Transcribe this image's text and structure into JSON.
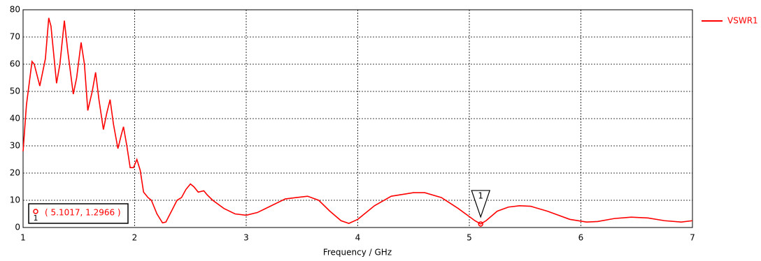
{
  "chart_data": {
    "type": "line",
    "xlabel": "Frequency / GHz",
    "x": [
      1,
      1.03,
      1.08,
      1.1,
      1.15,
      1.2,
      1.23,
      1.25,
      1.3,
      1.33,
      1.37,
      1.4,
      1.45,
      1.48,
      1.52,
      1.55,
      1.58,
      1.62,
      1.65,
      1.68,
      1.72,
      1.75,
      1.78,
      1.81,
      1.85,
      1.88,
      1.9,
      1.93,
      1.96,
      1.99,
      2.02,
      2.05,
      2.08,
      2.12,
      2.15,
      2.2,
      2.25,
      2.28,
      2.33,
      2.38,
      2.42,
      2.46,
      2.5,
      2.53,
      2.57,
      2.62,
      2.65,
      2.7,
      2.8,
      2.9,
      3.0,
      3.1,
      3.2,
      3.35,
      3.45,
      3.55,
      3.65,
      3.75,
      3.85,
      3.92,
      4.0,
      4.15,
      4.3,
      4.5,
      4.6,
      4.75,
      4.9,
      5.05,
      5.1017,
      5.15,
      5.25,
      5.35,
      5.45,
      5.55,
      5.7,
      5.9,
      6.05,
      6.15,
      6.3,
      6.45,
      6.6,
      6.75,
      6.9,
      7.0
    ],
    "series": [
      {
        "name": "VSWR1",
        "color": "#ff0000",
        "values": [
          28,
          45,
          61,
          60,
          52,
          62,
          77,
          74,
          53,
          60,
          76,
          65,
          49,
          55,
          68,
          60,
          43,
          50,
          57,
          47,
          36,
          42,
          47,
          38,
          29,
          34,
          37,
          30,
          22,
          22,
          25,
          21,
          13,
          11,
          10,
          5,
          1.7,
          2,
          6,
          10,
          11,
          14,
          16,
          15,
          13,
          13.5,
          12,
          10,
          7,
          5,
          4.5,
          5.5,
          7.5,
          10.5,
          11,
          11.5,
          10,
          6,
          2.5,
          1.5,
          3,
          8,
          11.5,
          12.8,
          12.8,
          11,
          7,
          2.5,
          1.2966,
          2.5,
          6,
          7.5,
          8,
          7.8,
          6,
          3,
          2,
          2.2,
          3.3,
          3.8,
          3.5,
          2.5,
          2,
          2.5
        ]
      }
    ],
    "xlim": [
      1,
      7
    ],
    "xticks": [
      1,
      2,
      3,
      4,
      5,
      6,
      7
    ],
    "ylim": [
      0,
      80
    ],
    "yticks": [
      0,
      10,
      20,
      30,
      40,
      50,
      60,
      70,
      80
    ],
    "grid": true,
    "legend": "right",
    "marker": {
      "label": "1",
      "x": 5.1017,
      "y": 1.2966,
      "text": "( 5.1017, 1.2966 )"
    }
  }
}
